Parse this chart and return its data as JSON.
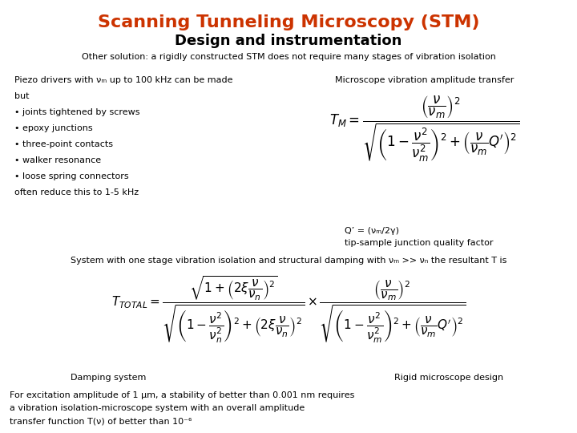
{
  "title1": "Scanning Tunneling Microscopy (STM)",
  "title1_color": "#CC3300",
  "title2": "Design and instrumentation",
  "title2_color": "#000000",
  "subtitle": "Other solution: a rigidly constructed STM does not require many stages of vibration isolation",
  "subtitle_color": "#000000",
  "bg_color": "#ffffff",
  "left_text_lines": [
    "Piezo drivers with νₘ up to 100 kHz can be made",
    "but",
    "• joints tightened by screws",
    "• epoxy junctions",
    "• three-point contacts",
    "• walker resonance",
    "• loose spring connectors",
    "often reduce this to 1-5 kHz"
  ],
  "microscope_label": "Microscope vibration amplitude transfer",
  "q_prime_text": "Q’ = (νₘ/2γ)",
  "q_prime_desc": "tip-sample junction quality factor",
  "system_text": "System with one stage vibration isolation and structural damping with νₘ >> νₙ the resultant T is",
  "damping_label": "Damping system",
  "rigid_label": "Rigid microscope design",
  "bottom_text": [
    "For excitation amplitude of 1 μm, a stability of better than 0.001 nm requires",
    "a vibration isolation-microscope system with an overall amplitude",
    "transfer function T(ν) of better than 10⁻⁶"
  ],
  "title1_fontsize": 16,
  "title2_fontsize": 13,
  "subtitle_fontsize": 8,
  "body_fontsize": 8,
  "formula_fontsize": 9
}
